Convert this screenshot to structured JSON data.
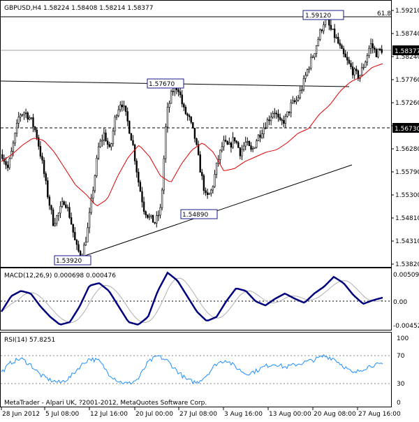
{
  "header": {
    "symbol_info": "GBPUSD,H4  1.58224 1.58408 1.58214 1.58377",
    "fib_label": "61.8"
  },
  "footer": {
    "copyright": "MetaTrader - Alpari UK, ?2001-2012, MetaQuotes Software Corp."
  },
  "colors": {
    "candle": "#000000",
    "ma": "#e00000",
    "macd_main": "#00007f",
    "macd_signal": "#b0b0b0",
    "rsi": "#1e90ff",
    "level_line": "#808080"
  },
  "chart_data": [
    {
      "type": "candlestick",
      "title": "GBPUSD,H4",
      "ohlc_last": {
        "open": 1.58224,
        "high": 1.58408,
        "low": 1.58214,
        "close": 1.58377
      },
      "ylim": [
        1.5382,
        1.5921
      ],
      "y_ticks": [
        "1.59210",
        "1.58740",
        "1.58240",
        "1.57760",
        "1.57260",
        "1.56790",
        "1.56280",
        "1.55790",
        "1.55300",
        "1.54810",
        "1.54310",
        "1.53820"
      ],
      "x_ticks": [
        "28 Jun 2012",
        "5 Jul 08:00",
        "12 Jul 16:00",
        "20 Jul 00:00",
        "27 Jul 08:00",
        "3 Aug 16:00",
        "13 Aug 00:00",
        "20 Aug 08:00",
        "27 Aug 16:00"
      ],
      "close_path": [
        1.5615,
        1.5585,
        1.564,
        1.57,
        1.5705,
        1.569,
        1.566,
        1.56,
        1.553,
        1.547,
        1.549,
        1.552,
        1.548,
        1.542,
        1.5395,
        1.545,
        1.554,
        1.563,
        1.566,
        1.562,
        1.57,
        1.573,
        1.569,
        1.564,
        1.556,
        1.55,
        1.548,
        1.547,
        1.55,
        1.57,
        1.575,
        1.576,
        1.571,
        1.569,
        1.565,
        1.558,
        1.552,
        1.554,
        1.56,
        1.564,
        1.563,
        1.565,
        1.562,
        1.564,
        1.562,
        1.565,
        1.567,
        1.569,
        1.571,
        1.568,
        1.569,
        1.572,
        1.573,
        1.576,
        1.58,
        1.583,
        1.587,
        1.5905,
        1.588,
        1.586,
        1.583,
        1.581,
        1.579,
        1.578,
        1.581,
        1.585,
        1.583,
        1.5838
      ],
      "ma_path": [
        1.56,
        1.5615,
        1.5635,
        1.565,
        1.5645,
        1.562,
        1.5585,
        1.555,
        1.553,
        1.5505,
        1.552,
        1.557,
        1.561,
        1.5635,
        1.561,
        1.557,
        1.5555,
        1.5595,
        1.5625,
        1.564,
        1.562,
        1.558,
        1.5585,
        1.56,
        1.561,
        1.562,
        1.5625,
        1.564,
        1.566,
        1.567,
        1.57,
        1.572,
        1.575,
        1.577,
        1.578,
        1.58,
        1.5808
      ],
      "price_labels": [
        {
          "text": "1.59120",
          "price": 1.5912
        },
        {
          "text": "1.57670",
          "price": 1.5767
        },
        {
          "text": "1.54890",
          "price": 1.5489
        },
        {
          "text": "1.53920",
          "price": 1.5392
        }
      ],
      "current_price": "1.58377",
      "horizontal_level": "1.56730",
      "lines": [
        {
          "type": "horizontal",
          "label": "61.8",
          "price": 1.5903
        },
        {
          "type": "horizontal",
          "style": "solid",
          "price": 1.5837
        },
        {
          "type": "horizontal",
          "style": "dashed",
          "price": 1.5673
        },
        {
          "type": "trendline",
          "note": "rising support from 1.53920 low"
        },
        {
          "type": "trendline",
          "note": "descending resistance through 1.57670"
        }
      ]
    },
    {
      "type": "line",
      "title": "MACD(12,26,9) 0.000698 0.000476",
      "ylim": [
        -0.0052,
        0.0058
      ],
      "y_ticks": [
        "0.00509",
        "0.00",
        "-0.00452"
      ],
      "main_path": [
        -0.002,
        0.001,
        0.002,
        0.0015,
        -0.001,
        -0.003,
        -0.0045,
        -0.004,
        -0.001,
        0.003,
        0.0035,
        0.002,
        -0.001,
        -0.004,
        -0.0045,
        -0.003,
        0.002,
        0.0055,
        0.004,
        0.001,
        -0.002,
        -0.0038,
        -0.003,
        0.0,
        0.0025,
        0.002,
        0.0,
        -0.0008,
        0.0005,
        0.0015,
        0.0005,
        -0.0003,
        0.0015,
        0.0028,
        0.0047,
        0.0035,
        0.0012,
        -0.0005,
        0.0002,
        0.0007
      ]
    },
    {
      "type": "line",
      "title": "RSI(14) 57.8251",
      "ylim": [
        0,
        100
      ],
      "y_ticks": [
        "100",
        "70",
        "30",
        "0"
      ],
      "levels": [
        70,
        30
      ],
      "rsi_path": [
        46,
        62,
        68,
        58,
        42,
        34,
        30,
        38,
        55,
        68,
        64,
        44,
        32,
        28,
        36,
        62,
        72,
        64,
        48,
        34,
        30,
        42,
        60,
        66,
        54,
        44,
        48,
        56,
        60,
        54,
        58,
        62,
        66,
        72,
        68,
        56,
        44,
        52,
        58,
        57.8
      ]
    }
  ]
}
